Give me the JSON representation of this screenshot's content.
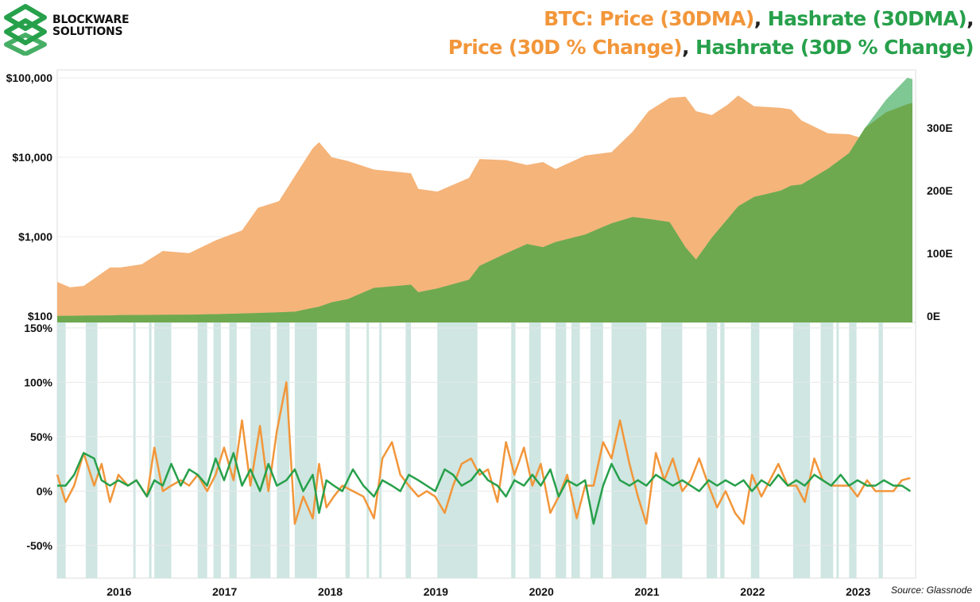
{
  "brand": {
    "line1": "BLOCKWARE",
    "line2": "SOLUTIONS",
    "logo_color": "#27a04b"
  },
  "title": {
    "part1": "BTC: Price (30DMA)",
    "part2": "Hashrate (30DMA)",
    "part3": "Price (30D % Change)",
    "part4": "Hashrate (30D % Change)",
    "sep": ","
  },
  "source": "Source: Glassnode",
  "colors": {
    "price": "#f2963a",
    "price_area": "#f5b47a",
    "hashrate": "#27a04b",
    "hashrate_area": "#6fa94f",
    "hashrate_area_top": "#7fc793",
    "band": "#cfe6e2"
  },
  "chart_data": [
    {
      "type": "area",
      "x": [
        2015.5,
        2015.62,
        2015.75,
        2015.9,
        2016.0,
        2016.1,
        2016.3,
        2016.5,
        2016.75,
        2017.0,
        2017.25,
        2017.4,
        2017.6,
        2017.75,
        2017.92,
        2017.98,
        2018.1,
        2018.25,
        2018.5,
        2018.85,
        2018.92,
        2019.1,
        2019.4,
        2019.5,
        2019.75,
        2019.95,
        2020.1,
        2020.22,
        2020.5,
        2020.75,
        2020.95,
        2021.1,
        2021.3,
        2021.45,
        2021.55,
        2021.7,
        2021.85,
        2021.95,
        2022.1,
        2022.35,
        2022.45,
        2022.55,
        2022.8,
        2023.0,
        2023.15,
        2023.35,
        2023.55,
        2023.6
      ],
      "series": [
        {
          "name": "Price (30DMA)",
          "axis": "left",
          "values": [
            270,
            230,
            240,
            330,
            410,
            410,
            450,
            660,
            620,
            900,
            1200,
            2300,
            2800,
            5800,
            13000,
            15500,
            10000,
            9000,
            7000,
            6300,
            4000,
            3700,
            5500,
            9500,
            9200,
            8000,
            8700,
            7100,
            10500,
            11600,
            21000,
            38000,
            56000,
            58000,
            38000,
            34000,
            46000,
            60000,
            44000,
            42000,
            40000,
            29000,
            20000,
            19500,
            17000,
            18500,
            28000,
            29000
          ]
        },
        {
          "name": "Hashrate (30DMA)",
          "axis": "right",
          "values": [
            0.4,
            0.5,
            0.7,
            0.9,
            1.2,
            1.5,
            1.8,
            2,
            2.3,
            3,
            4,
            5,
            6,
            7,
            13,
            15,
            22,
            27,
            45,
            50,
            38,
            44,
            58,
            80,
            100,
            115,
            110,
            118,
            130,
            148,
            158,
            155,
            150,
            110,
            90,
            125,
            155,
            175,
            190,
            200,
            208,
            210,
            235,
            260,
            300,
            325,
            338,
            340
          ]
        },
        {
          "name": "Hashrate peak",
          "axis": "right",
          "values": [
            0.4,
            0.5,
            0.7,
            0.9,
            1.2,
            1.5,
            1.8,
            2,
            2.3,
            3,
            4,
            5,
            6,
            7,
            13,
            15,
            22,
            27,
            45,
            50,
            38,
            44,
            58,
            80,
            100,
            115,
            110,
            118,
            130,
            148,
            158,
            155,
            150,
            110,
            90,
            125,
            155,
            175,
            190,
            200,
            208,
            210,
            235,
            260,
            300,
            345,
            380,
            378
          ]
        }
      ],
      "ylim_left": [
        100,
        100000
      ],
      "yscale_left": "log",
      "yticks_left": [
        "$100",
        "$1,000",
        "$10,000",
        "$100,000"
      ],
      "ylim_right": [
        0,
        380
      ],
      "yticks_right": [
        "0E",
        "100E",
        "200E",
        "300E"
      ]
    },
    {
      "type": "line",
      "x": [
        2015.5,
        2015.58,
        2015.66,
        2015.75,
        2015.85,
        2015.92,
        2016.0,
        2016.08,
        2016.17,
        2016.25,
        2016.35,
        2016.42,
        2016.5,
        2016.58,
        2016.67,
        2016.75,
        2016.83,
        2016.92,
        2017.0,
        2017.08,
        2017.17,
        2017.25,
        2017.33,
        2017.42,
        2017.5,
        2017.58,
        2017.67,
        2017.75,
        2017.83,
        2017.92,
        2017.98,
        2018.05,
        2018.12,
        2018.2,
        2018.3,
        2018.4,
        2018.5,
        2018.58,
        2018.67,
        2018.75,
        2018.83,
        2018.92,
        2019.0,
        2019.08,
        2019.17,
        2019.25,
        2019.33,
        2019.42,
        2019.5,
        2019.58,
        2019.67,
        2019.75,
        2019.83,
        2019.92,
        2020.0,
        2020.08,
        2020.17,
        2020.25,
        2020.33,
        2020.42,
        2020.5,
        2020.58,
        2020.67,
        2020.75,
        2020.83,
        2020.92,
        2021.0,
        2021.08,
        2021.17,
        2021.25,
        2021.33,
        2021.42,
        2021.5,
        2021.58,
        2021.67,
        2021.75,
        2021.83,
        2021.92,
        2022.0,
        2022.08,
        2022.17,
        2022.25,
        2022.33,
        2022.42,
        2022.5,
        2022.58,
        2022.67,
        2022.75,
        2022.83,
        2022.92,
        2023.0,
        2023.08,
        2023.17,
        2023.25,
        2023.33,
        2023.42,
        2023.5,
        2023.58
      ],
      "series": [
        {
          "name": "Price (30D % Change)",
          "values": [
            15,
            -10,
            5,
            35,
            5,
            25,
            -10,
            15,
            5,
            10,
            -5,
            40,
            0,
            5,
            10,
            5,
            15,
            0,
            15,
            40,
            10,
            65,
            5,
            60,
            0,
            55,
            100,
            -30,
            -5,
            -25,
            25,
            -15,
            -5,
            5,
            0,
            -5,
            -25,
            30,
            45,
            15,
            5,
            -5,
            0,
            -5,
            -20,
            5,
            25,
            30,
            15,
            20,
            -10,
            45,
            15,
            40,
            5,
            25,
            -20,
            -5,
            15,
            -25,
            5,
            5,
            45,
            30,
            65,
            25,
            -5,
            -30,
            35,
            10,
            30,
            0,
            10,
            30,
            5,
            -15,
            0,
            -20,
            -30,
            15,
            -5,
            10,
            25,
            5,
            5,
            -10,
            30,
            10,
            5,
            5,
            5,
            -5,
            10,
            0,
            0,
            0,
            10,
            12
          ]
        },
        {
          "name": "Hashrate (30D % Change)",
          "values": [
            5,
            5,
            15,
            35,
            30,
            10,
            5,
            10,
            5,
            10,
            -5,
            10,
            5,
            25,
            5,
            20,
            15,
            5,
            30,
            10,
            35,
            5,
            20,
            0,
            25,
            5,
            10,
            20,
            0,
            15,
            -20,
            10,
            5,
            0,
            20,
            5,
            -5,
            10,
            5,
            0,
            15,
            10,
            5,
            0,
            20,
            15,
            5,
            10,
            20,
            10,
            5,
            -5,
            10,
            5,
            15,
            5,
            20,
            -5,
            10,
            5,
            10,
            -30,
            5,
            25,
            10,
            5,
            10,
            5,
            15,
            10,
            5,
            10,
            5,
            0,
            10,
            5,
            10,
            5,
            10,
            0,
            10,
            5,
            15,
            5,
            10,
            5,
            15,
            10,
            5,
            15,
            5,
            10,
            5,
            5,
            10,
            5,
            5,
            0
          ]
        }
      ],
      "ylim": [
        -80,
        155
      ],
      "yticks": [
        "-50%",
        "0%",
        "50%",
        "100%",
        "150%"
      ],
      "xticks": [
        "2016",
        "2017",
        "2018",
        "2019",
        "2020",
        "2021",
        "2022",
        "2023"
      ],
      "bands": [
        [
          2015.5,
          2015.58
        ],
        [
          2015.77,
          2015.88
        ],
        [
          2016.22,
          2016.24
        ],
        [
          2016.37,
          2016.39
        ],
        [
          2016.42,
          2016.58
        ],
        [
          2016.83,
          2016.92
        ],
        [
          2016.98,
          2017.05
        ],
        [
          2017.13,
          2017.2
        ],
        [
          2017.33,
          2017.52
        ],
        [
          2017.58,
          2017.7
        ],
        [
          2017.75,
          2017.96
        ],
        [
          2018.23,
          2018.27
        ],
        [
          2018.43,
          2018.45
        ],
        [
          2018.55,
          2018.57
        ],
        [
          2018.8,
          2018.85
        ],
        [
          2019.1,
          2019.48
        ],
        [
          2019.8,
          2019.84
        ],
        [
          2019.97,
          2020.08
        ],
        [
          2020.22,
          2020.32
        ],
        [
          2020.37,
          2020.45
        ],
        [
          2020.55,
          2020.67
        ],
        [
          2020.75,
          2021.08
        ],
        [
          2021.22,
          2021.42
        ],
        [
          2021.65,
          2021.75
        ],
        [
          2021.78,
          2021.82
        ],
        [
          2022.07,
          2022.15
        ],
        [
          2022.47,
          2022.63
        ],
        [
          2022.73,
          2022.85
        ],
        [
          2022.88,
          2022.9
        ],
        [
          2023.0,
          2023.07
        ],
        [
          2023.28,
          2023.32
        ]
      ]
    }
  ]
}
